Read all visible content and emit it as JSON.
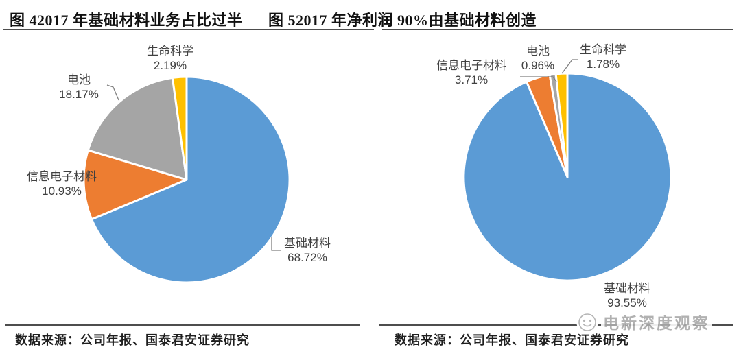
{
  "watermark": {
    "text": "电新深度观察",
    "icon": "smiley-face-logo"
  },
  "chart_data": {
    "type": "pie",
    "layout": "two pies side by side",
    "legend": "none (direct data labels with leader lines)",
    "palette": {
      "blue": "#5B9BD5",
      "orange": "#ED7D31",
      "gray": "#A5A5A5",
      "yellow": "#FFC000"
    },
    "start_angle": "12 o'clock",
    "direction": "clockwise",
    "charts": [
      {
        "title": "图 42017 年基础材料业务占比过半",
        "source": "数据来源：公司年报、国泰君安证券研究",
        "slices": [
          {
            "name": "基础材料",
            "value": 68.72,
            "percent": "68.72%",
            "color": "#5B9BD5"
          },
          {
            "name": "信息电子材料",
            "value": 10.93,
            "percent": "10.93%",
            "color": "#ED7D31"
          },
          {
            "name": "电池",
            "value": 18.17,
            "percent": "18.17%",
            "color": "#A5A5A5"
          },
          {
            "name": "生命科学",
            "value": 2.19,
            "percent": "2.19%",
            "color": "#FFC000"
          }
        ]
      },
      {
        "title": "图 52017 年净利润 90%由基础材料创造",
        "source": "数据来源：公司年报、国泰君安证券研究",
        "slices": [
          {
            "name": "基础材料",
            "value": 93.55,
            "percent": "93.55%",
            "color": "#5B9BD5"
          },
          {
            "name": "信息电子材料",
            "value": 3.71,
            "percent": "3.71%",
            "color": "#ED7D31"
          },
          {
            "name": "电池",
            "value": 0.96,
            "percent": "0.96%",
            "color": "#A5A5A5"
          },
          {
            "name": "生命科学",
            "value": 1.78,
            "percent": "1.78%",
            "color": "#FFC000"
          }
        ]
      }
    ]
  }
}
